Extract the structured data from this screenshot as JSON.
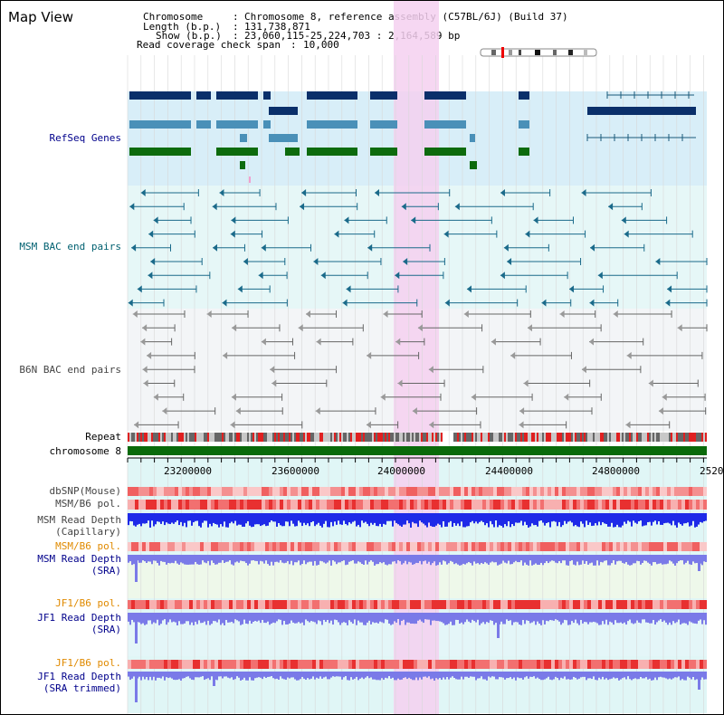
{
  "view": {
    "title": "Map View",
    "chromosome_label": "Chromosome",
    "chromosome_value": "Chromosome 8, reference assembly (C57BL/6J) (Build 37)",
    "length_label": "Length (b.p.)",
    "length_value": "131,738,871",
    "show_label": "Show (b.p.)",
    "show_value": "23,060,115-25,224,703 : 2,164,589 bp",
    "span_label": "Read coverage check span",
    "span_value": "10,000"
  },
  "tracks": {
    "refseq": "RefSeq Genes",
    "msm_bac": "MSM BAC end pairs",
    "b6n_bac": "B6N BAC end pairs",
    "repeat": "Repeat",
    "chromosome": "chromosome 8",
    "dbsnp": "dbSNP(Mouse)",
    "msm_b6_pol": "MSM/B6 pol.",
    "msm_depth_cap_1": "MSM Read Depth",
    "msm_depth_cap_2": "(Capillary)",
    "msm_b6_pol_sra": "MSM/B6 pol.",
    "msm_depth_sra_1": "MSM Read Depth",
    "msm_depth_sra_2": "(SRA)",
    "jf1_b6_pol": "JF1/B6 pol.",
    "jf1_depth_sra_1": "JF1 Read Depth",
    "jf1_depth_sra_2": "(SRA)",
    "jf1_b6_pol_trim": "JF1/B6 pol.",
    "jf1_depth_trim_1": "JF1 Read Depth",
    "jf1_depth_trim_2": "(SRA trimmed)"
  },
  "axis": {
    "ticks": [
      "23200000",
      "23600000",
      "24000000",
      "24400000",
      "24800000",
      "2520"
    ]
  },
  "colors": {
    "refseq_dark": "#0a2f6a",
    "refseq_mid": "#4a90b8",
    "refseq_green": "#0d6b0d",
    "msm_line": "#1a6a8a",
    "b6n_line": "#666666",
    "highlight": "#f5d0f0",
    "chromosome_bar": "#0a6a0a",
    "depth_dark": "#1e2ae8",
    "depth_light": "#7a7ae8"
  },
  "icons": {
    "ideogram": "chromosome-ideogram"
  }
}
